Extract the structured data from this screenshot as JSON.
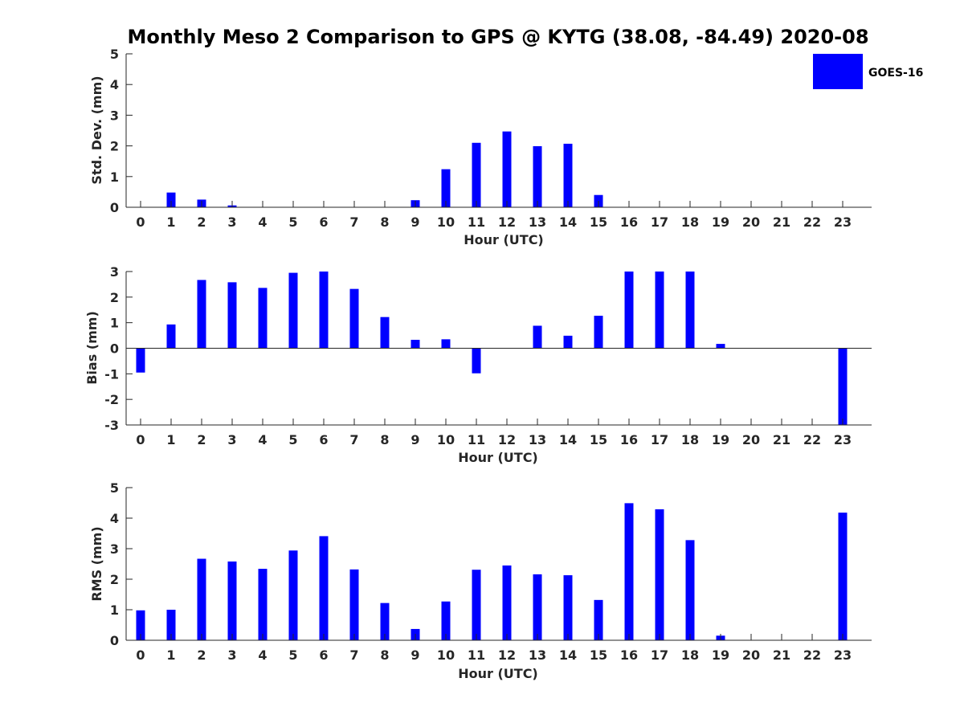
{
  "title": "Monthly Meso 2 Comparison to GPS @ KYTG (38.08, -84.49) 2020-08",
  "legend": {
    "entries": [
      "GOES-16"
    ],
    "placement": "top-right"
  },
  "colors": {
    "bar": "#0000FF",
    "axis": "#262626",
    "background": "#FFFFFF"
  },
  "chart_data": [
    {
      "type": "bar",
      "xlabel": "Hour (UTC)",
      "ylabel": "Std. Dev. (mm)",
      "ylim": [
        0,
        5
      ],
      "yticks": [
        0,
        1,
        2,
        3,
        4,
        5
      ],
      "categories": [
        "0",
        "1",
        "2",
        "3",
        "4",
        "5",
        "6",
        "7",
        "8",
        "9",
        "10",
        "11",
        "12",
        "13",
        "14",
        "15",
        "16",
        "17",
        "18",
        "19",
        "20",
        "21",
        "22",
        "23"
      ],
      "series": [
        {
          "name": "GOES-16",
          "values": [
            0,
            0.48,
            0.25,
            0.06,
            0,
            0,
            0,
            0,
            0,
            0.23,
            1.24,
            2.1,
            2.47,
            1.99,
            2.07,
            0.4,
            0,
            0,
            0,
            0,
            0,
            0,
            0,
            0
          ]
        }
      ]
    },
    {
      "type": "bar",
      "xlabel": "Hour (UTC)",
      "ylabel": "Bias (mm)",
      "ylim": [
        -3,
        3
      ],
      "yticks": [
        -3,
        -2,
        -1,
        0,
        1,
        2,
        3
      ],
      "categories": [
        "0",
        "1",
        "2",
        "3",
        "4",
        "5",
        "6",
        "7",
        "8",
        "9",
        "10",
        "11",
        "12",
        "13",
        "14",
        "15",
        "16",
        "17",
        "18",
        "19",
        "20",
        "21",
        "22",
        "23"
      ],
      "series": [
        {
          "name": "GOES-16",
          "values": [
            -0.95,
            0.93,
            2.67,
            2.58,
            2.36,
            2.95,
            3.0,
            2.32,
            1.22,
            0.33,
            0.35,
            -0.98,
            0,
            0.88,
            0.49,
            1.27,
            3.0,
            3.0,
            3.0,
            0.17,
            0,
            0,
            0,
            -3.0
          ]
        }
      ]
    },
    {
      "type": "bar",
      "xlabel": "Hour (UTC)",
      "ylabel": "RMS (mm)",
      "ylim": [
        0,
        5
      ],
      "yticks": [
        0,
        1,
        2,
        3,
        4,
        5
      ],
      "categories": [
        "0",
        "1",
        "2",
        "3",
        "4",
        "5",
        "6",
        "7",
        "8",
        "9",
        "10",
        "11",
        "12",
        "13",
        "14",
        "15",
        "16",
        "17",
        "18",
        "19",
        "20",
        "21",
        "22",
        "23"
      ],
      "series": [
        {
          "name": "GOES-16",
          "values": [
            0.98,
            1.0,
            2.67,
            2.58,
            2.34,
            2.94,
            3.41,
            2.32,
            1.22,
            0.37,
            1.27,
            2.31,
            2.45,
            2.16,
            2.13,
            1.32,
            4.49,
            4.29,
            3.28,
            0.15,
            0,
            0,
            0,
            4.18
          ]
        }
      ]
    }
  ]
}
